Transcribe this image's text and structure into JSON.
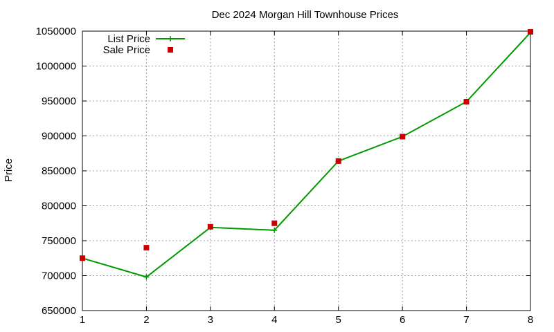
{
  "chart_data": {
    "type": "line",
    "title": "Dec 2024 Morgan Hill Townhouse Prices",
    "xlabel": "",
    "ylabel": "Price",
    "x": [
      1,
      2,
      3,
      4,
      5,
      6,
      7,
      8
    ],
    "xlim": [
      1,
      8
    ],
    "ylim": [
      650000,
      1050000
    ],
    "xticks": [
      "1",
      "2",
      "3",
      "4",
      "5",
      "6",
      "7",
      "8"
    ],
    "yticks": [
      "650000",
      "700000",
      "750000",
      "800000",
      "850000",
      "900000",
      "950000",
      "1000000",
      "1050000"
    ],
    "grid": true,
    "legend_position": "top-left",
    "series": [
      {
        "name": "List Price",
        "style": "line-with-plus-markers",
        "color": "#009900",
        "values": [
          725000,
          698000,
          769000,
          765000,
          864000,
          899000,
          949000,
          1048000
        ]
      },
      {
        "name": "Sale Price",
        "style": "square-markers",
        "color": "#cc0000",
        "values": [
          725000,
          740000,
          770000,
          775000,
          864000,
          899000,
          949000,
          1049000
        ]
      }
    ]
  }
}
